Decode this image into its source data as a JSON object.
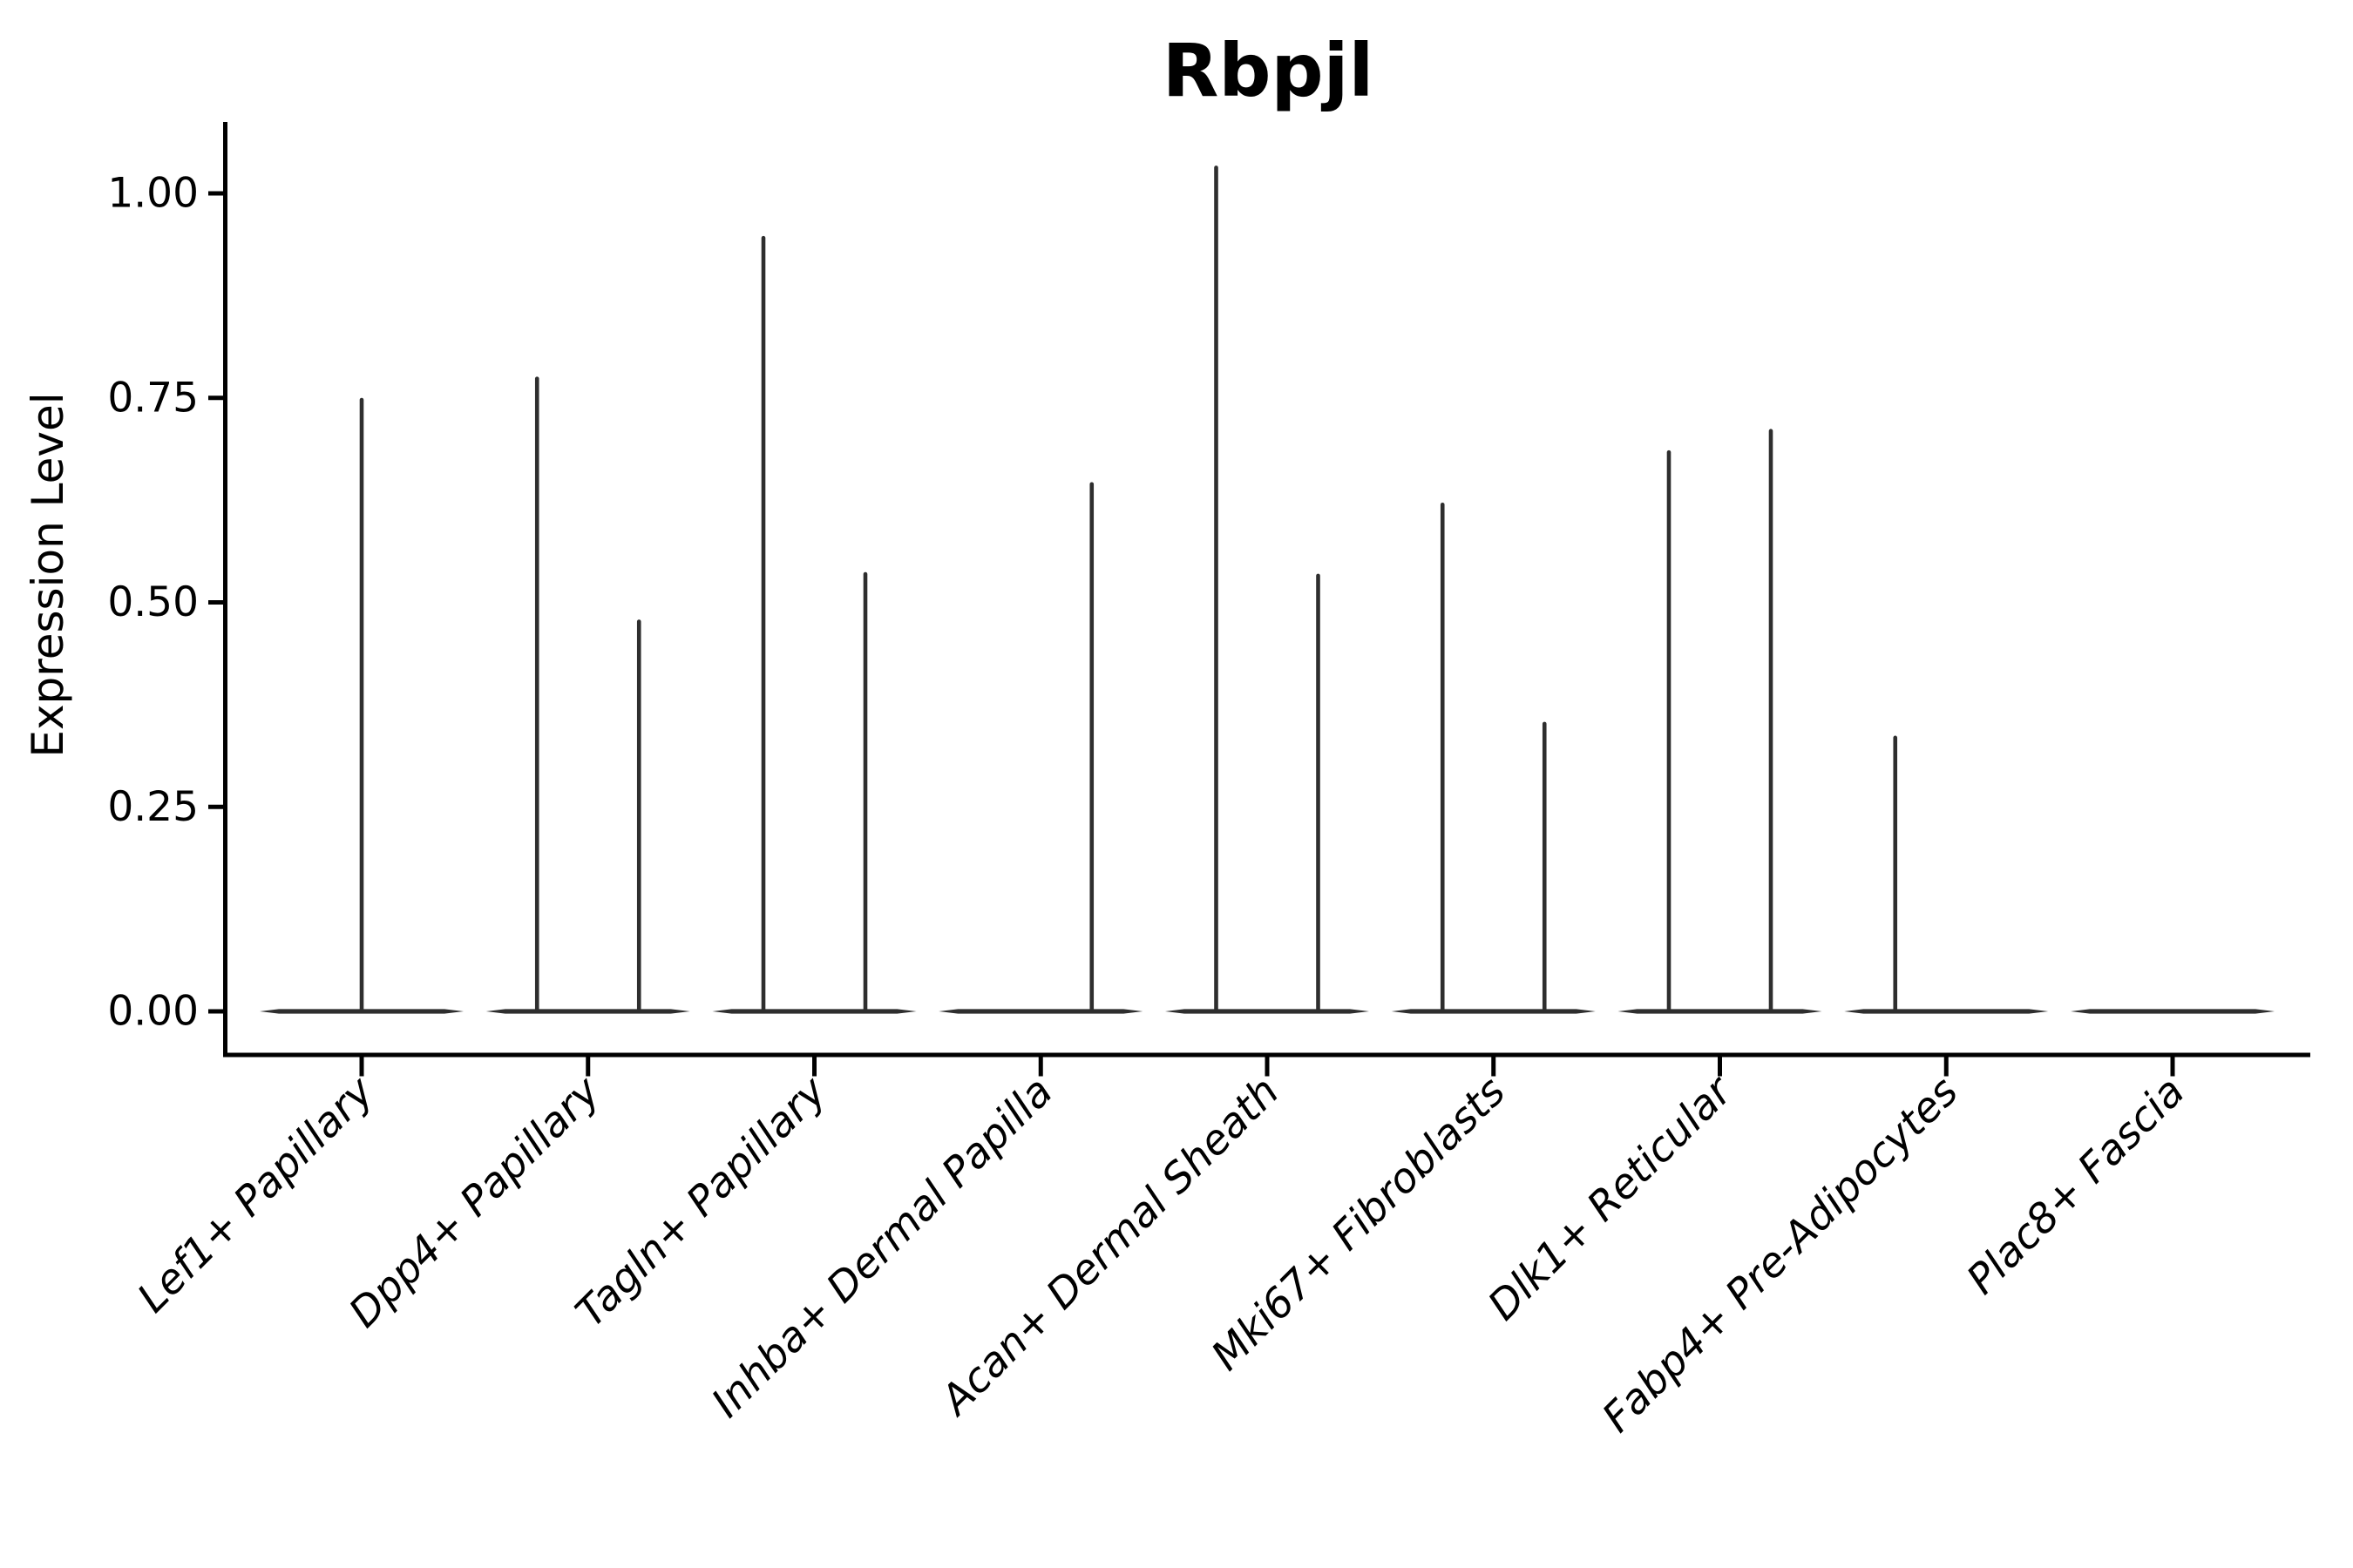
{
  "page": {
    "background": "#ffffff"
  },
  "chart_data": {
    "type": "violin",
    "title": "Rbpjl",
    "ylabel": "Expression Level",
    "xlabel": "",
    "grid": false,
    "legend": null,
    "ylim": [
      -0.053,
      1.087
    ],
    "ytick_values": [
      0.0,
      0.25,
      0.5,
      0.75,
      1.0
    ],
    "ytick_labels": [
      "0.00",
      "0.25",
      "0.50",
      "0.75",
      "1.00"
    ],
    "categories": [
      "Lef1+ Papillary",
      "Dpp4+ Papillary",
      "Tagln+ Papillary",
      "Inhba+ Dermal Papilla",
      "Acan+ Dermal Sheath",
      "Mki67+ Fibroblasts",
      "Dlk1+ Reticular",
      "Fabp4+ Pre-Adipocytes",
      "Plac8+ Fascia"
    ],
    "series": [
      {
        "category": "Lef1+ Papillary",
        "violins": [
          {
            "side": "center",
            "max_expression": 0.75
          }
        ]
      },
      {
        "category": "Dpp4+ Papillary",
        "violins": [
          {
            "side": "left",
            "max_expression": 0.776
          },
          {
            "side": "right",
            "max_expression": 0.479
          }
        ]
      },
      {
        "category": "Tagln+ Papillary",
        "violins": [
          {
            "side": "left",
            "max_expression": 0.948
          },
          {
            "side": "right",
            "max_expression": 0.537
          }
        ]
      },
      {
        "category": "Inhba+ Dermal Papilla",
        "violins": [
          {
            "side": "right",
            "max_expression": 0.647
          }
        ]
      },
      {
        "category": "Acan+ Dermal Sheath",
        "violins": [
          {
            "side": "left",
            "max_expression": 1.034
          },
          {
            "side": "right",
            "max_expression": 0.535
          }
        ]
      },
      {
        "category": "Mki67+ Fibroblasts",
        "violins": [
          {
            "side": "left",
            "max_expression": 0.622
          },
          {
            "side": "right",
            "max_expression": 0.354
          }
        ]
      },
      {
        "category": "Dlk1+ Reticular",
        "violins": [
          {
            "side": "left",
            "max_expression": 0.686
          },
          {
            "side": "right",
            "max_expression": 0.712
          }
        ]
      },
      {
        "category": "Fabp4+ Pre-Adipocytes",
        "violins": [
          {
            "side": "left",
            "max_expression": 0.337
          }
        ]
      },
      {
        "category": "Plac8+ Fascia",
        "violins": []
      }
    ],
    "colors": {
      "violin": "#2e2e2e",
      "axis": "#000000",
      "text": "#000000",
      "background": "#ffffff"
    }
  }
}
